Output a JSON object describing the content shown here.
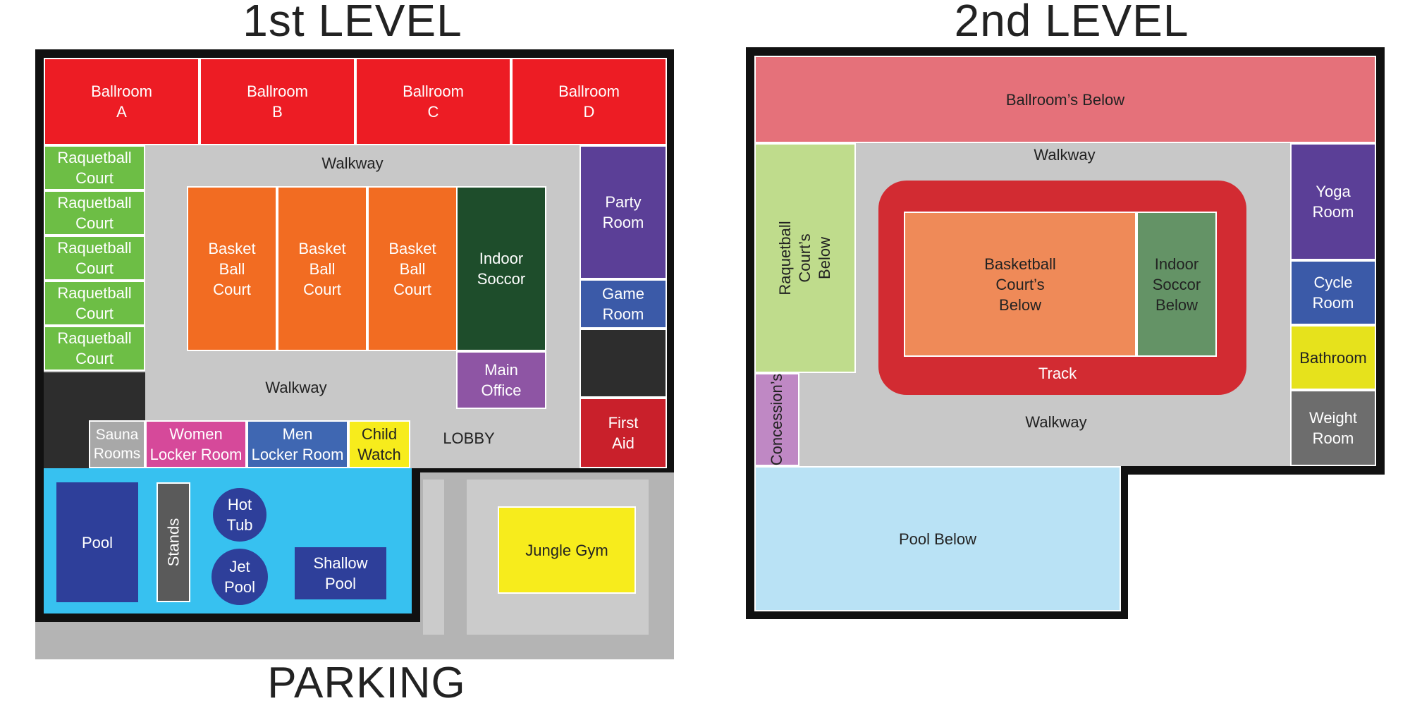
{
  "colors": {
    "ballroom": "#ed1c24",
    "raquetball": "#6dbe45",
    "walkway": "#c8c8c8",
    "basketball": "#f26c22",
    "soccer": "#1e4d2b",
    "party": "#5b3f97",
    "game": "#3b5aa8",
    "dark": "#2d2d2d",
    "first_aid": "#c9202b",
    "main_office": "#8e55a4",
    "sauna": "#a8a8a8",
    "women": "#d6499a",
    "men": "#3f67b2",
    "child": "#f7ec1c",
    "pool_area": "#37c1f0",
    "pool": "#2e3f9a",
    "stands": "#5a5a5a",
    "parking": "#b4b4b4",
    "parking_lot": "#cbcbcb",
    "jungle": "#f7ec1c",
    "ballroom_below": "#e5717a",
    "raquet_below": "#bfdc8c",
    "track": "#d22b32",
    "basket_below": "#ef8a58",
    "soccer_below": "#649366",
    "yoga": "#5b3f97",
    "cycle": "#3b5aa8",
    "bathroom": "#e6e21c",
    "weight": "#6d6d6d",
    "concession": "#bf88c4",
    "pool_below": "#b9e2f5"
  },
  "level1": {
    "title": "1st LEVEL",
    "ballrooms": [
      "Ballroom\nA",
      "Ballroom\nB",
      "Ballroom\nC",
      "Ballroom\nD"
    ],
    "raquetball": [
      "Raquetball\nCourt",
      "Raquetball\nCourt",
      "Raquetball\nCourt",
      "Raquetball\nCourt",
      "Raquetball\nCourt"
    ],
    "walkway_top": "Walkway",
    "walkway_bottom": "Walkway",
    "basketball": [
      "Basket\nBall\nCourt",
      "Basket\nBall\nCourt",
      "Basket\nBall\nCourt"
    ],
    "indoor_soccer": "Indoor\nSoccor",
    "main_office": "Main\nOffice",
    "party_room": "Party\nRoom",
    "game_room": "Game\nRoom",
    "first_aid": "First\nAid",
    "sauna": "Sauna\nRooms",
    "women": "Women\nLocker Room",
    "men": "Men\nLocker Room",
    "child_watch": "Child\nWatch",
    "lobby": "LOBBY",
    "pool": "Pool",
    "stands": "Stands",
    "hot_tub": "Hot\nTub",
    "jet_pool": "Jet\nPool",
    "shallow_pool": "Shallow\nPool",
    "jungle_gym": "Jungle Gym",
    "parking": "PARKING"
  },
  "level2": {
    "title": "2nd LEVEL",
    "ballroom_below": "Ballroom’s Below",
    "walkway_top": "Walkway",
    "walkway_bottom": "Walkway",
    "raquetball_below": "Raquetball Court’s\nBelow",
    "basketball_below": "Basketball\nCourt’s\nBelow",
    "soccer_below": "Indoor\nSoccor\nBelow",
    "track": "Track",
    "yoga": "Yoga\nRoom",
    "cycle": "Cycle\nRoom",
    "bathroom": "Bathroom",
    "weight": "Weight\nRoom",
    "concession": "Concession’s",
    "pool_below": "Pool Below"
  }
}
